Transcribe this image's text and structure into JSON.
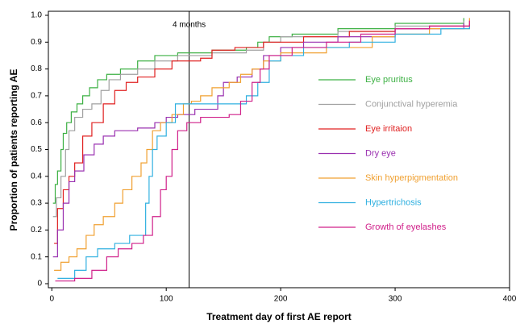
{
  "chart_data": {
    "type": "line",
    "step": true,
    "xlabel": "Treatment day of first AE report",
    "ylabel": "Proportion of patients reporting AE",
    "xlim": [
      -3,
      400
    ],
    "xticks": [
      0,
      100,
      200,
      300,
      400
    ],
    "ylim": [
      -0.015,
      1.015
    ],
    "yticks": [
      0,
      0.1,
      0.2,
      0.3,
      0.4,
      0.5,
      0.6,
      0.7,
      0.8,
      0.9,
      {
        "value": 1,
        "label": "1.0"
      }
    ],
    "annotation": {
      "x": 120,
      "text": "4 months"
    },
    "series": [
      {
        "name": "Eye pruritus",
        "color": "#3cb043",
        "x": [
          1,
          3,
          5,
          8,
          10,
          13,
          17,
          22,
          27,
          33,
          40,
          48,
          60,
          75,
          90,
          110,
          140,
          170,
          180,
          190,
          210,
          250,
          300,
          360
        ],
        "values": [
          0.3,
          0.37,
          0.42,
          0.5,
          0.56,
          0.6,
          0.64,
          0.67,
          0.7,
          0.73,
          0.76,
          0.78,
          0.8,
          0.83,
          0.85,
          0.86,
          0.87,
          0.88,
          0.9,
          0.92,
          0.93,
          0.95,
          0.97,
          0.99
        ]
      },
      {
        "name": "Conjunctival hyperemia",
        "color": "#a0a0a0",
        "x": [
          1,
          4,
          8,
          12,
          15,
          20,
          27,
          35,
          43,
          50,
          60,
          75,
          90,
          110,
          140,
          170,
          185,
          200,
          250,
          300,
          360
        ],
        "values": [
          0.25,
          0.32,
          0.4,
          0.5,
          0.57,
          0.62,
          0.65,
          0.67,
          0.72,
          0.76,
          0.78,
          0.8,
          0.83,
          0.85,
          0.86,
          0.87,
          0.9,
          0.92,
          0.94,
          0.96,
          0.98
        ]
      },
      {
        "name": "Eye irritaion",
        "color": "#e02020",
        "x": [
          2,
          5,
          10,
          15,
          20,
          27,
          35,
          45,
          55,
          65,
          75,
          90,
          105,
          130,
          140,
          160,
          185,
          220,
          260,
          300,
          330,
          365
        ],
        "values": [
          0.15,
          0.28,
          0.35,
          0.4,
          0.45,
          0.55,
          0.6,
          0.67,
          0.72,
          0.75,
          0.77,
          0.8,
          0.83,
          0.84,
          0.87,
          0.88,
          0.9,
          0.92,
          0.94,
          0.95,
          0.96,
          0.97
        ]
      },
      {
        "name": "Dry eye",
        "color": "#9a30b0",
        "x": [
          1,
          5,
          10,
          15,
          20,
          28,
          37,
          45,
          55,
          75,
          90,
          100,
          110,
          125,
          145,
          150,
          162,
          175,
          185,
          200,
          220,
          250,
          300,
          360
        ],
        "values": [
          0.1,
          0.2,
          0.3,
          0.38,
          0.42,
          0.48,
          0.52,
          0.55,
          0.57,
          0.58,
          0.6,
          0.62,
          0.63,
          0.65,
          0.7,
          0.75,
          0.77,
          0.8,
          0.85,
          0.88,
          0.9,
          0.92,
          0.95,
          0.97
        ]
      },
      {
        "name": "Skin hyperpigmentation",
        "color": "#f0a030",
        "x": [
          2,
          8,
          15,
          22,
          30,
          37,
          45,
          55,
          62,
          70,
          78,
          83,
          88,
          95,
          105,
          115,
          122,
          130,
          140,
          155,
          165,
          175,
          185,
          200,
          240,
          280,
          300,
          330,
          365
        ],
        "values": [
          0.05,
          0.08,
          0.1,
          0.13,
          0.18,
          0.22,
          0.25,
          0.3,
          0.35,
          0.4,
          0.45,
          0.5,
          0.57,
          0.6,
          0.63,
          0.67,
          0.68,
          0.7,
          0.73,
          0.75,
          0.78,
          0.8,
          0.83,
          0.86,
          0.88,
          0.92,
          0.93,
          0.95,
          0.99
        ]
      },
      {
        "name": "Hypertrichosis",
        "color": "#30b0e0",
        "x": [
          5,
          20,
          30,
          40,
          55,
          68,
          82,
          85,
          88,
          92,
          100,
          108,
          170,
          180,
          190,
          200,
          220,
          260,
          300,
          340,
          365
        ],
        "values": [
          0.02,
          0.05,
          0.1,
          0.13,
          0.15,
          0.18,
          0.3,
          0.4,
          0.5,
          0.55,
          0.6,
          0.67,
          0.7,
          0.75,
          0.83,
          0.85,
          0.88,
          0.9,
          0.93,
          0.95,
          0.96
        ]
      },
      {
        "name": "Growth of eyelashes",
        "color": "#d0208a",
        "x": [
          3,
          20,
          35,
          48,
          58,
          70,
          80,
          88,
          95,
          100,
          105,
          110,
          118,
          130,
          155,
          165,
          175,
          182,
          190,
          210,
          240,
          270,
          300,
          330,
          365
        ],
        "values": [
          0.01,
          0.02,
          0.05,
          0.1,
          0.13,
          0.15,
          0.18,
          0.25,
          0.35,
          0.4,
          0.5,
          0.57,
          0.6,
          0.62,
          0.63,
          0.68,
          0.75,
          0.8,
          0.85,
          0.88,
          0.9,
          0.93,
          0.95,
          0.96,
          0.98
        ]
      }
    ]
  }
}
